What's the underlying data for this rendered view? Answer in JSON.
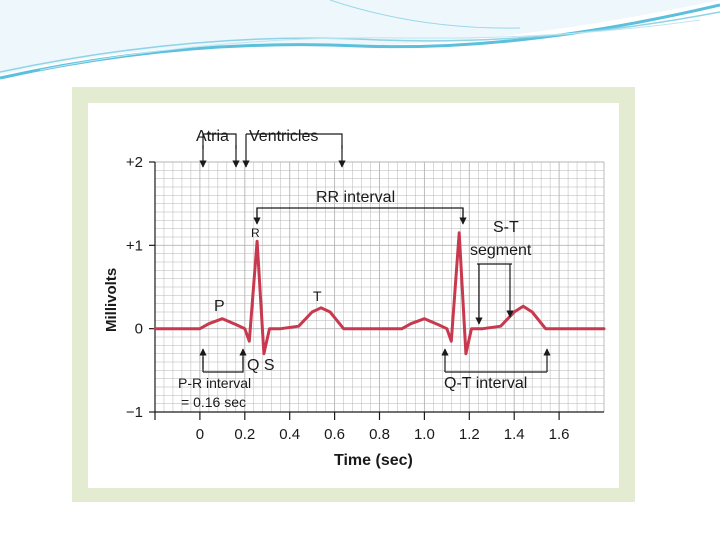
{
  "chart_data": {
    "type": "line",
    "title": "",
    "xlabel": "Time (sec)",
    "ylabel": "Millivolts",
    "xlim": [
      -0.2,
      1.8
    ],
    "ylim": [
      -1,
      2
    ],
    "x_ticks": [
      "0",
      "0.2",
      "0.4",
      "0.6",
      "0.8",
      "1.0",
      "1.2",
      "1.4",
      "1.6"
    ],
    "y_ticks": [
      "+2",
      "+1",
      "0",
      "−1"
    ],
    "grid": true,
    "series": [
      {
        "color": "#c8394f",
        "x": [
          -0.2,
          0.0,
          0.04,
          0.1,
          0.16,
          0.2,
          0.22,
          0.255,
          0.285,
          0.31,
          0.36,
          0.44,
          0.5,
          0.54,
          0.58,
          0.64,
          0.9,
          0.94,
          1.0,
          1.06,
          1.1,
          1.12,
          1.155,
          1.185,
          1.21,
          1.26,
          1.34,
          1.4,
          1.44,
          1.48,
          1.54,
          1.8
        ],
        "y": [
          0,
          0,
          0.06,
          0.12,
          0.05,
          0,
          -0.15,
          1.05,
          -0.3,
          0,
          0,
          0.03,
          0.2,
          0.25,
          0.2,
          0,
          0,
          0.06,
          0.12,
          0.05,
          0,
          -0.15,
          1.15,
          -0.3,
          0,
          0,
          0.03,
          0.2,
          0.27,
          0.2,
          0,
          0
        ]
      }
    ],
    "annotations": {
      "atria": "Atria",
      "ventricles": "Ventricles",
      "rr_interval": "RR interval",
      "r": "R",
      "p": "P",
      "t": "T",
      "qs": "Q S",
      "st_line1": "S-T",
      "st_line2": "segment",
      "pr_line1": "P-R interval",
      "pr_line2": "= 0.16 sec",
      "qt_interval": "Q-T interval"
    }
  },
  "colors": {
    "frame": "#e3ebd0",
    "grid": "#b5b5b5",
    "trace": "#c8394f",
    "swoosh": "#5cc0dc"
  }
}
